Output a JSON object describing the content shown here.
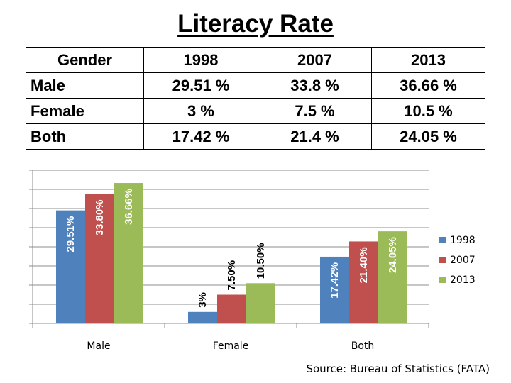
{
  "title": "Literacy Rate",
  "table": {
    "headers": [
      "Gender",
      "1998",
      "2007",
      "2013"
    ],
    "rows": [
      [
        "Male",
        "29.51 %",
        "33.8 %",
        "36.66 %"
      ],
      [
        "Female",
        "3 %",
        "7.5 %",
        "10.5 %"
      ],
      [
        "Both",
        "17.42 %",
        "21.4 %",
        "24.05 %"
      ]
    ]
  },
  "chart_data": {
    "type": "bar",
    "categories": [
      "Male",
      "Female",
      "Both"
    ],
    "series": [
      {
        "name": "1998",
        "color": "#4f81bd",
        "values": [
          29.51,
          3,
          17.42
        ],
        "labels": [
          "29.51%",
          "3%",
          "17.42%"
        ]
      },
      {
        "name": "2007",
        "color": "#c0504d",
        "values": [
          33.8,
          7.5,
          21.4
        ],
        "labels": [
          "33.80%",
          "7.50%",
          "21.40%"
        ]
      },
      {
        "name": "2013",
        "color": "#9bbb59",
        "values": [
          36.66,
          10.5,
          24.05
        ],
        "labels": [
          "36.66%",
          "10.50%",
          "24.05%"
        ]
      }
    ],
    "ylim": [
      0,
      40
    ],
    "grid": true,
    "legend": "right"
  },
  "source": "Source: Bureau of Statistics (FATA)"
}
